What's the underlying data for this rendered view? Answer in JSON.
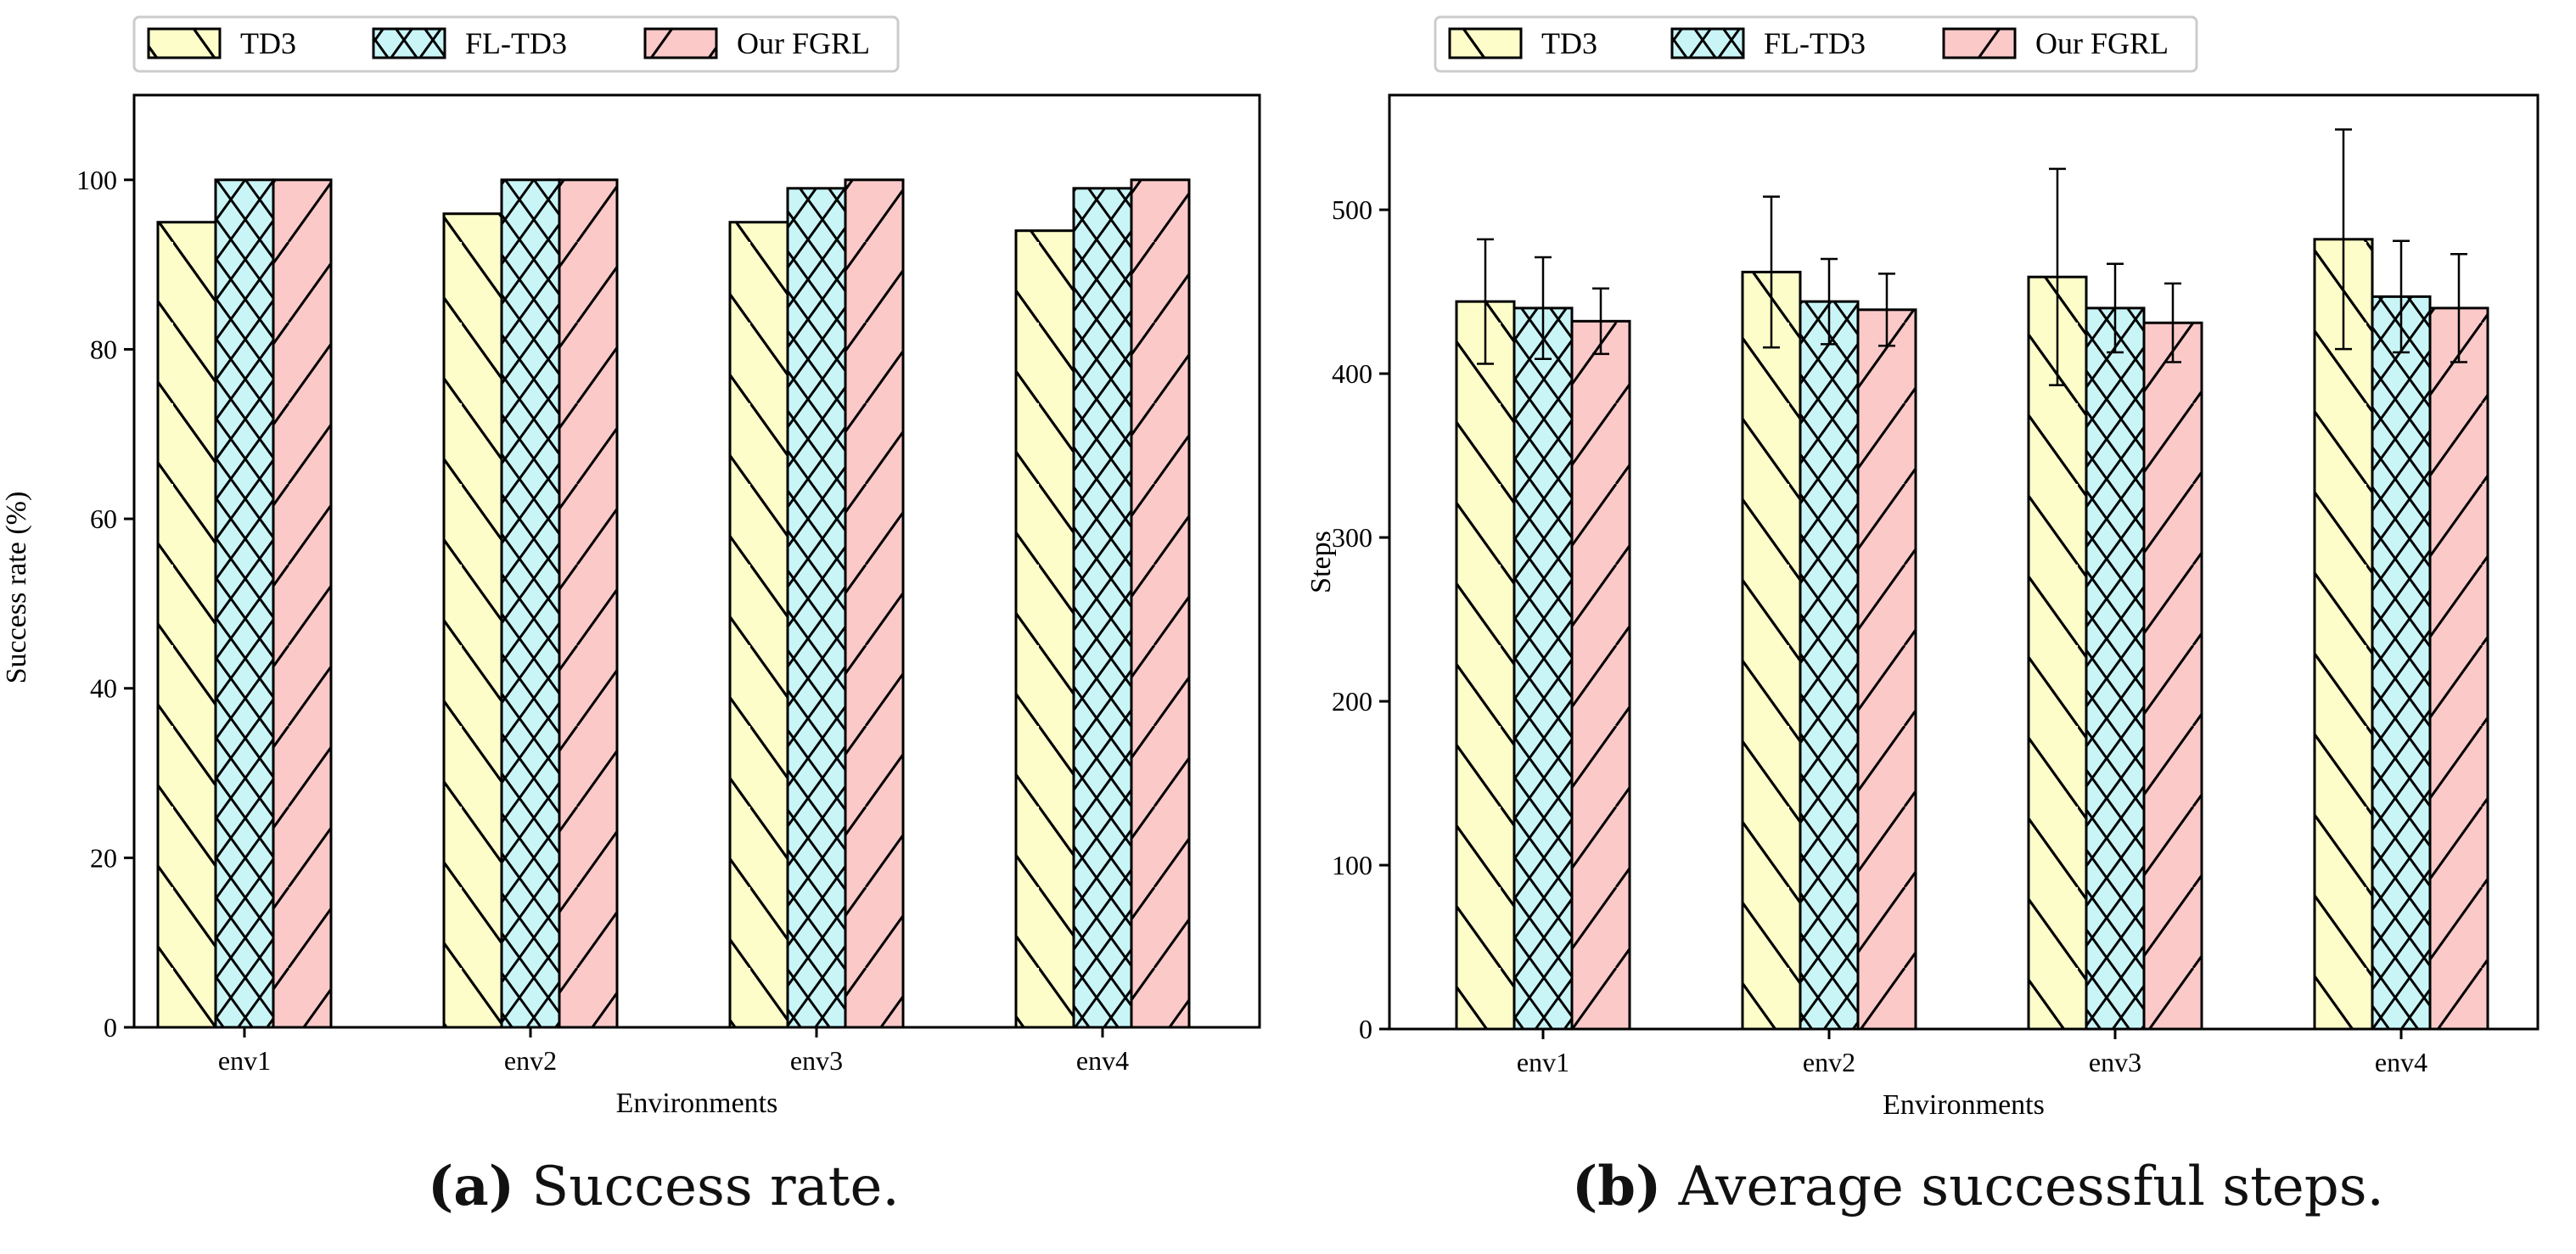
{
  "chart_data": [
    {
      "type": "bar",
      "panel_letter": "a",
      "caption": "Success rate.",
      "categories": [
        "env1",
        "env2",
        "env3",
        "env4"
      ],
      "series": [
        {
          "name": "TD3",
          "values": [
            95,
            96,
            95,
            94
          ],
          "color": "#fdfdc9",
          "hatch": "backslash"
        },
        {
          "name": "FL-TD3",
          "values": [
            100,
            100,
            99,
            99
          ],
          "color": "#c9f5f7",
          "hatch": "cross"
        },
        {
          "name": "Our FGRL",
          "values": [
            100,
            100,
            100,
            100
          ],
          "color": "#fcc9c9",
          "hatch": "slash"
        }
      ],
      "xlabel": "Environments",
      "ylabel": "Success rate (%)",
      "ylim": [
        0,
        110
      ],
      "yticks": [
        0,
        20,
        40,
        60,
        80,
        100
      ],
      "grid": false,
      "legend_position": "top"
    },
    {
      "type": "bar",
      "panel_letter": "b",
      "caption": "Average successful steps.",
      "categories": [
        "env1",
        "env2",
        "env3",
        "env4"
      ],
      "series": [
        {
          "name": "TD3",
          "values": [
            444,
            462,
            459,
            482
          ],
          "errors": [
            38,
            46,
            66,
            67
          ],
          "color": "#fdfdc9",
          "hatch": "backslash"
        },
        {
          "name": "FL-TD3",
          "values": [
            440,
            444,
            440,
            447
          ],
          "errors": [
            31,
            26,
            27,
            34
          ],
          "color": "#c9f5f7",
          "hatch": "cross"
        },
        {
          "name": "Our FGRL",
          "values": [
            432,
            439,
            431,
            440
          ],
          "errors": [
            20,
            22,
            24,
            33
          ],
          "color": "#fcc9c9",
          "hatch": "slash"
        }
      ],
      "xlabel": "Environments",
      "ylabel": "Steps",
      "ylim": [
        0,
        570
      ],
      "yticks": [
        0,
        100,
        200,
        300,
        400,
        500
      ],
      "grid": false,
      "legend_position": "top"
    }
  ]
}
